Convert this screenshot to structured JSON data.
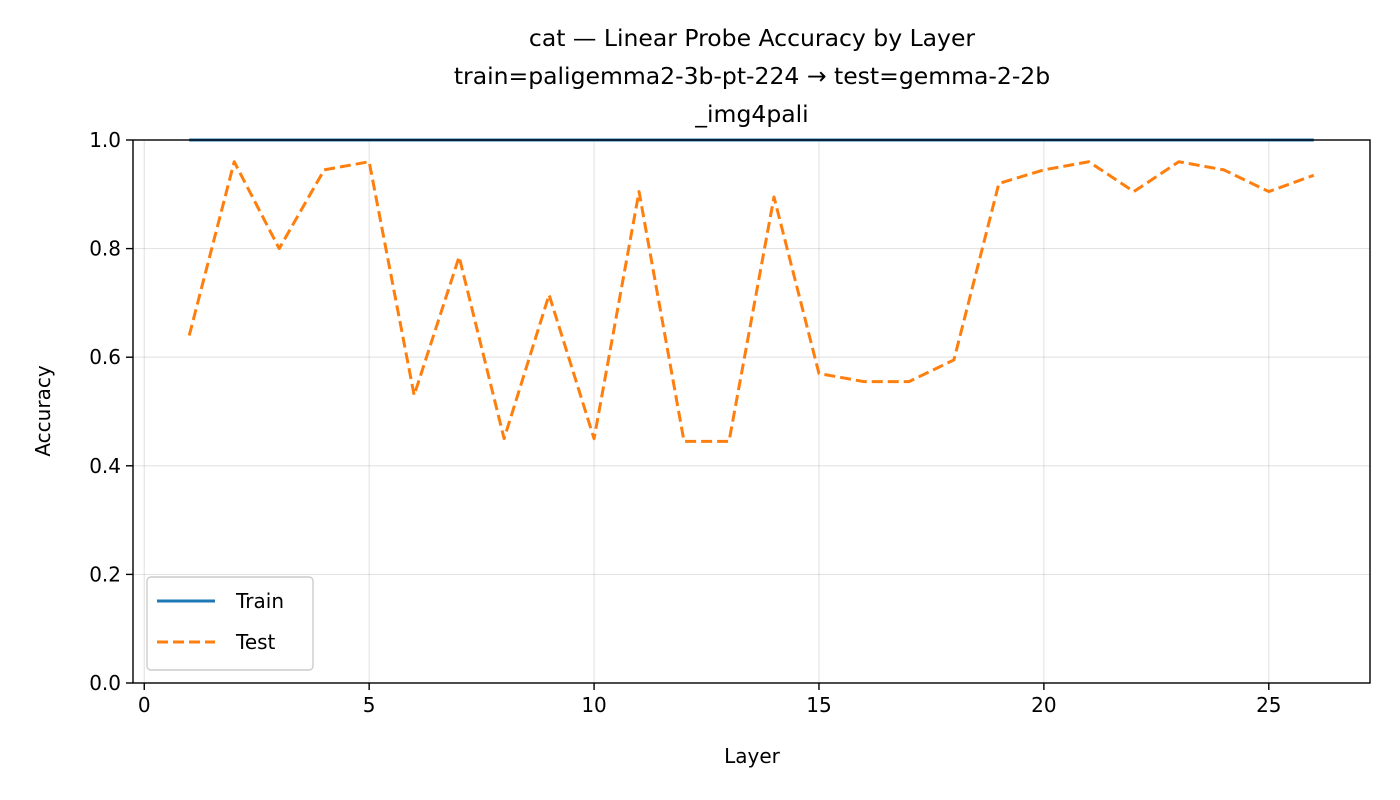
{
  "chart_data": {
    "type": "line",
    "title_lines": [
      "cat — Linear Probe Accuracy by Layer",
      "train=paligemma2-3b-pt-224 → test=gemma-2-2b",
      "_img4pali"
    ],
    "xlabel": "Layer",
    "ylabel": "Accuracy",
    "xlim": [
      -0.25,
      27.25
    ],
    "ylim": [
      0.0,
      1.0
    ],
    "xticks": [
      0,
      5,
      10,
      15,
      20,
      25
    ],
    "yticks": [
      0.0,
      0.2,
      0.4,
      0.6,
      0.8,
      1.0
    ],
    "xtick_labels": [
      "0",
      "5",
      "10",
      "15",
      "20",
      "25"
    ],
    "ytick_labels": [
      "0.0",
      "0.2",
      "0.4",
      "0.6",
      "0.8",
      "1.0"
    ],
    "grid": true,
    "legend_position": "lower-left",
    "x": [
      1,
      2,
      3,
      4,
      5,
      6,
      7,
      8,
      9,
      10,
      11,
      12,
      13,
      14,
      15,
      16,
      17,
      18,
      19,
      20,
      21,
      22,
      23,
      24,
      25,
      26
    ],
    "series": [
      {
        "name": "Train",
        "color": "#1f77b4",
        "dash": "solid",
        "values": [
          1.0,
          1.0,
          1.0,
          1.0,
          1.0,
          1.0,
          1.0,
          1.0,
          1.0,
          1.0,
          1.0,
          1.0,
          1.0,
          1.0,
          1.0,
          1.0,
          1.0,
          1.0,
          1.0,
          1.0,
          1.0,
          1.0,
          1.0,
          1.0,
          1.0,
          1.0
        ]
      },
      {
        "name": "Test",
        "color": "#ff7f0e",
        "dash": "dashed",
        "values": [
          0.64,
          0.96,
          0.8,
          0.945,
          0.96,
          0.53,
          0.785,
          0.45,
          0.715,
          0.45,
          0.905,
          0.445,
          0.445,
          0.895,
          0.57,
          0.555,
          0.555,
          0.595,
          0.92,
          0.945,
          0.96,
          0.905,
          0.96,
          0.945,
          0.905,
          0.935
        ]
      }
    ]
  }
}
